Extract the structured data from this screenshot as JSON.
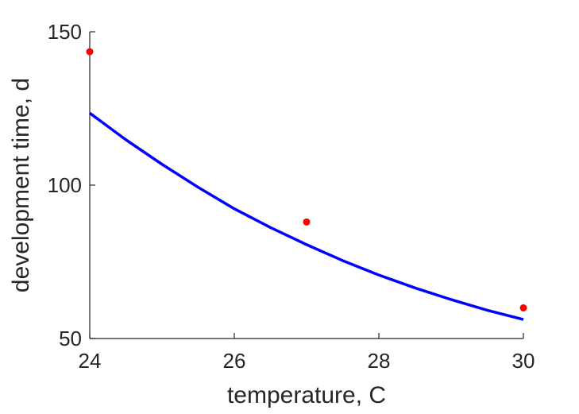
{
  "chart_data": {
    "type": "line",
    "xlabel": "temperature, C",
    "ylabel": "development time, d",
    "xlim": [
      24,
      30
    ],
    "ylim": [
      50,
      150
    ],
    "xticks": [
      24,
      26,
      28,
      30
    ],
    "yticks": [
      50,
      100,
      150
    ],
    "grid": false,
    "series": [
      {
        "kind": "line",
        "color": "#0000ff",
        "x": [
          24,
          24.5,
          25,
          25.5,
          26,
          26.5,
          27,
          27.5,
          28,
          28.5,
          29,
          29.5,
          30
        ],
        "y": [
          123.5,
          114.8,
          106.8,
          99.3,
          92.3,
          86.2,
          80.6,
          75.4,
          70.7,
          66.5,
          62.7,
          59.2,
          56.2
        ]
      },
      {
        "kind": "scatter",
        "color": "#ff0000",
        "x": [
          24,
          27,
          30
        ],
        "y": [
          143.5,
          88,
          60
        ]
      }
    ]
  }
}
